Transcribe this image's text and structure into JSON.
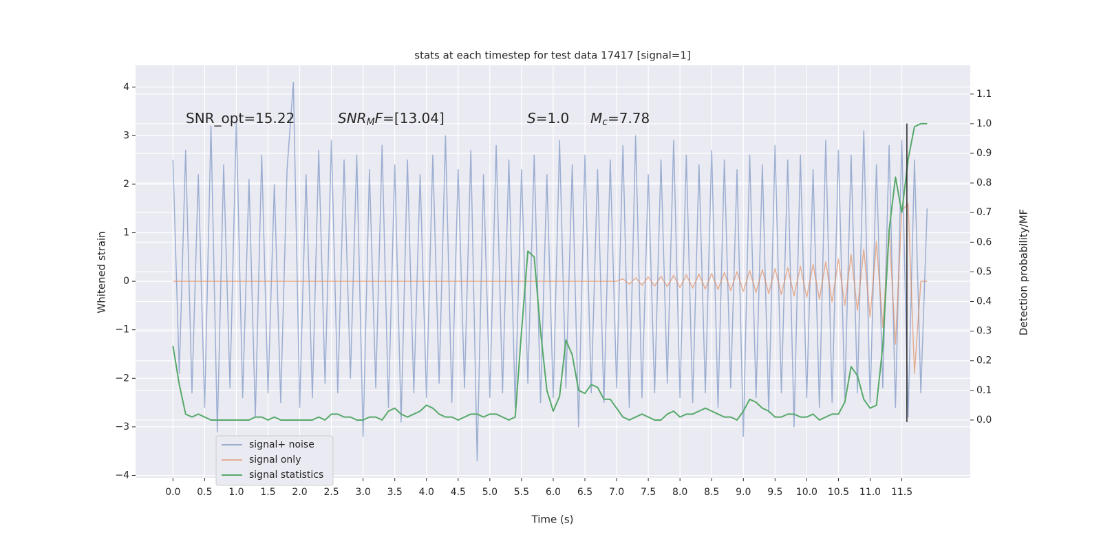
{
  "chart_data": {
    "type": "line",
    "title": "stats at each timestep for test data 17417 [signal=1]",
    "xlabel": "Time (s)",
    "ylabel": "Whitened strain",
    "y2label": "Detection probability/MF",
    "grid": true,
    "legend": "lower left",
    "xlim": [
      -0.59,
      12.58
    ],
    "ylim": [
      -4.05,
      4.45
    ],
    "y2lim": [
      -0.195,
      1.197
    ],
    "xticks": [
      {
        "value": 0,
        "label": "0.0"
      },
      0.5,
      {
        "value": 1,
        "label": "1.0"
      },
      1.5,
      {
        "value": 2,
        "label": "2.0"
      },
      2.5,
      {
        "value": 3,
        "label": "3.0"
      },
      3.5,
      {
        "value": 4,
        "label": "4.0"
      },
      4.5,
      {
        "value": 5,
        "label": "5.0"
      },
      5.5,
      {
        "value": 6,
        "label": "6.0"
      },
      6.5,
      {
        "value": 7,
        "label": "7.0"
      },
      7.5,
      {
        "value": 8,
        "label": "8.0"
      },
      8.5,
      {
        "value": 9,
        "label": "9.0"
      },
      9.5,
      {
        "value": 10,
        "label": "10.0"
      },
      10.5,
      {
        "value": 11,
        "label": "11.0"
      },
      11.5
    ],
    "yticks": [
      {
        "value": -4,
        "label": "−4"
      },
      {
        "value": -3,
        "label": "−3"
      },
      {
        "value": -2,
        "label": "−2"
      },
      {
        "value": -1,
        "label": "−1"
      },
      0,
      1,
      2,
      3,
      4
    ],
    "y2ticks": [
      {
        "value": 0,
        "label": "0.0"
      },
      0.1,
      0.2,
      0.3,
      0.4,
      0.5,
      0.6,
      0.7,
      0.8,
      0.9,
      {
        "value": 1,
        "label": "1.0"
      },
      1.1
    ],
    "x": [
      0,
      0.1,
      0.2,
      0.3,
      0.4,
      0.5,
      0.6,
      0.7,
      0.8,
      0.9,
      1,
      1.1,
      1.2,
      1.3,
      1.4,
      1.5,
      1.6,
      1.7,
      1.8,
      1.9,
      2,
      2.1,
      2.2,
      2.3,
      2.4,
      2.5,
      2.6,
      2.7,
      2.8,
      2.9,
      3,
      3.1,
      3.2,
      3.3,
      3.4,
      3.5,
      3.6,
      3.7,
      3.8,
      3.9,
      4,
      4.1,
      4.2,
      4.3,
      4.4,
      4.5,
      4.6,
      4.7,
      4.8,
      4.9,
      5,
      5.1,
      5.2,
      5.3,
      5.4,
      5.5,
      5.6,
      5.7,
      5.8,
      5.9,
      6,
      6.1,
      6.2,
      6.3,
      6.4,
      6.5,
      6.6,
      6.7,
      6.8,
      6.9,
      7,
      7.1,
      7.2,
      7.3,
      7.4,
      7.5,
      7.6,
      7.7,
      7.8,
      7.9,
      8,
      8.1,
      8.2,
      8.3,
      8.4,
      8.5,
      8.6,
      8.7,
      8.8,
      8.9,
      9,
      9.1,
      9.2,
      9.3,
      9.4,
      9.5,
      9.6,
      9.7,
      9.8,
      9.9,
      10,
      10.1,
      10.2,
      10.3,
      10.4,
      10.5,
      10.6,
      10.7,
      10.8,
      10.9,
      11,
      11.1,
      11.2,
      11.3,
      11.4,
      11.5,
      11.6,
      11.7,
      11.8,
      11.9
    ],
    "series": [
      {
        "name": "signal+ noise",
        "color": "#4c72b0",
        "opacity": 0.5,
        "axis": "y",
        "values": [
          2.5,
          -1.9,
          2.7,
          -2.3,
          2.2,
          -2.6,
          3.2,
          -3.1,
          2.4,
          -2.2,
          3.3,
          -2.4,
          2.1,
          -2.8,
          2.6,
          -2.3,
          2.0,
          -2.5,
          2.3,
          4.1,
          -2.6,
          2.2,
          -2.4,
          2.7,
          -2.1,
          2.9,
          -2.3,
          2.5,
          -2.0,
          2.6,
          -3.2,
          2.3,
          -2.2,
          2.8,
          -2.6,
          2.4,
          -2.9,
          2.5,
          -2.3,
          2.2,
          -2.4,
          2.6,
          -2.1,
          3.0,
          -2.5,
          2.3,
          -2.2,
          2.7,
          -3.7,
          2.2,
          -2.4,
          2.8,
          -2.3,
          2.5,
          -2.6,
          2.3,
          -2.1,
          2.6,
          -2.5,
          2.2,
          -2.4,
          2.9,
          -2.2,
          2.4,
          -3.0,
          2.6,
          -2.3,
          2.3,
          -2.5,
          2.5,
          -2.2,
          2.8,
          -2.6,
          3.0,
          -2.4,
          2.2,
          -2.3,
          2.5,
          -2.1,
          2.9,
          -2.4,
          2.6,
          -2.5,
          2.4,
          -2.3,
          2.7,
          -2.6,
          2.5,
          -2.2,
          2.3,
          -3.2,
          2.6,
          -2.4,
          2.4,
          -2.7,
          2.8,
          -2.3,
          2.5,
          -3.0,
          2.6,
          -2.4,
          2.3,
          -2.6,
          2.9,
          -2.5,
          2.7,
          -2.4,
          2.6,
          -2.3,
          3.1,
          -2.5,
          2.4,
          -2.2,
          2.8,
          -2.6,
          2.9,
          -2.8,
          2.5,
          -2.3,
          1.5
        ]
      },
      {
        "name": "signal only",
        "color": "#dd8452",
        "opacity": 0.6,
        "axis": "y",
        "values": [
          0,
          0,
          0,
          0,
          0,
          0,
          0,
          0,
          0,
          0,
          0,
          0,
          0,
          0,
          0,
          0,
          0,
          0,
          0,
          0,
          0,
          0,
          0,
          0,
          0,
          0,
          0,
          0,
          0,
          0,
          0,
          0,
          0,
          0,
          0,
          0,
          0,
          0,
          0,
          0,
          0,
          0,
          0,
          0,
          0,
          0,
          0,
          0,
          0,
          0,
          0,
          0,
          0,
          0,
          0,
          0,
          0,
          0,
          0,
          0,
          0,
          0,
          0,
          0,
          0,
          0,
          0,
          0,
          0,
          0,
          0,
          0.05,
          -0.06,
          0.07,
          -0.08,
          0.09,
          -0.1,
          0.1,
          -0.11,
          0.12,
          -0.13,
          0.13,
          -0.14,
          0.15,
          -0.16,
          0.16,
          -0.17,
          0.18,
          -0.19,
          0.2,
          -0.21,
          0.22,
          -0.23,
          0.24,
          -0.25,
          0.26,
          -0.27,
          0.28,
          -0.3,
          0.31,
          -0.33,
          0.35,
          -0.37,
          0.4,
          -0.43,
          0.46,
          -0.5,
          0.55,
          -0.6,
          0.66,
          -0.74,
          0.82,
          -0.95,
          1.1,
          -1.3,
          1.45,
          1.6,
          -1.9,
          0,
          0
        ]
      },
      {
        "name": "signal statistics",
        "color": "#55a868",
        "opacity": 1,
        "axis": "y2",
        "values": [
          0.25,
          0.12,
          0.02,
          0.01,
          0.02,
          0.01,
          0,
          0,
          0,
          0,
          0,
          0,
          0,
          0.01,
          0.01,
          0,
          0.01,
          0,
          0,
          0,
          0,
          0,
          0,
          0.01,
          0,
          0.02,
          0.02,
          0.01,
          0.01,
          0,
          0,
          0.01,
          0.01,
          0,
          0.03,
          0.04,
          0.02,
          0.01,
          0.02,
          0.03,
          0.05,
          0.04,
          0.02,
          0.01,
          0.01,
          0,
          0.01,
          0.02,
          0.02,
          0.01,
          0.02,
          0.02,
          0.01,
          0,
          0.01,
          0.3,
          0.57,
          0.55,
          0.3,
          0.1,
          0.03,
          0.08,
          0.27,
          0.22,
          0.1,
          0.09,
          0.12,
          0.11,
          0.07,
          0.07,
          0.04,
          0.01,
          0,
          0.01,
          0.02,
          0.01,
          0,
          0,
          0.02,
          0.03,
          0.01,
          0.02,
          0.02,
          0.03,
          0.04,
          0.03,
          0.02,
          0.01,
          0.01,
          0,
          0.03,
          0.07,
          0.06,
          0.04,
          0.03,
          0.01,
          0.01,
          0.02,
          0.02,
          0.01,
          0.01,
          0.02,
          0,
          0.01,
          0.02,
          0.02,
          0.06,
          0.18,
          0.15,
          0.07,
          0.04,
          0.05,
          0.25,
          0.64,
          0.82,
          0.7,
          0.88,
          0.99,
          1,
          1
        ]
      }
    ],
    "vline": {
      "x": 11.58,
      "ymin": -2.9,
      "ymax": 3.25,
      "color": "#222222"
    },
    "annotations": [
      {
        "parts": [
          {
            "text": "SNR_opt=15.22",
            "style": "normal"
          }
        ]
      },
      {
        "parts": [
          {
            "text": "SNR",
            "style": "italic"
          },
          {
            "text": "M",
            "style": "sub"
          },
          {
            "text": "F",
            "style": "italic"
          },
          {
            "text": "=[13.04]",
            "style": "normal"
          }
        ]
      },
      {
        "parts": [
          {
            "text": "S",
            "style": "italic"
          },
          {
            "text": "=1.0",
            "style": "normal"
          }
        ]
      },
      {
        "parts": [
          {
            "text": "M",
            "style": "italic"
          },
          {
            "text": "c",
            "style": "sub"
          },
          {
            "text": "=7.78",
            "style": "normal"
          }
        ]
      }
    ]
  }
}
